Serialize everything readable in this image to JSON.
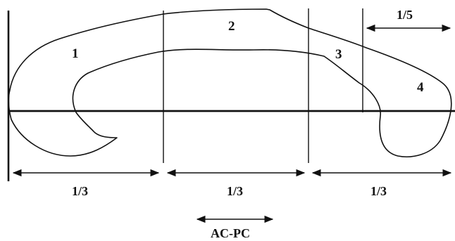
{
  "diagram": {
    "regions": [
      {
        "label": "1"
      },
      {
        "label": "2"
      },
      {
        "label": "3"
      },
      {
        "label": "4"
      }
    ],
    "posterior_fifth": {
      "label": "1/5"
    },
    "thirds": [
      {
        "label": "1/3"
      },
      {
        "label": "1/3"
      },
      {
        "label": "1/3"
      }
    ],
    "axis": {
      "label": "AC-PC"
    },
    "colors": {
      "ink": "#111111",
      "background": "#ffffff"
    }
  }
}
